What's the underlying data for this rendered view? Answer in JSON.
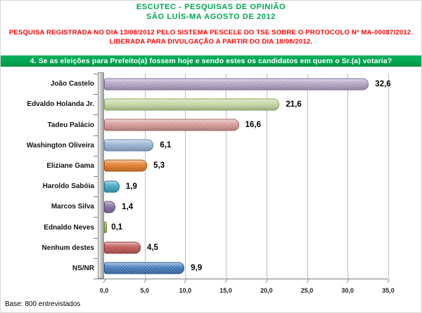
{
  "header": {
    "line1": "ESCUTEC - PESQUISAS DE OPINIÃO",
    "line2": "SÃO LUÍS-MA AGOSTO DE 2012",
    "reg_line1": "PESQUISA REGISTRADA NO DIA 13/08/2012 PELO SISTEMA PESCELE DO TSE SOBRE O PROTOCOLO Nº MA-00087/2012.",
    "reg_line2": "LIBERADA PARA DIVULGAÇÃO A PARTIR DO DIA 18/08/2012.",
    "title_color": "#00A651",
    "registration_color": "#FF0000"
  },
  "question_banner": {
    "text": "4. Se as eleições para Prefeito(a) fossem hoje e sendo estes os candidatos em quem o Sr.(a) votaria?",
    "bg_color": "#00A651",
    "text_color": "#FFFFFF"
  },
  "chart_data": {
    "type": "bar",
    "orientation": "horizontal",
    "title": "",
    "xlabel": "",
    "ylabel": "",
    "xlim": [
      0,
      35
    ],
    "x_ticks": [
      "0,0",
      "5,0",
      "10,0",
      "15,0",
      "20,0",
      "25,0",
      "30,0",
      "35,0"
    ],
    "x_tick_values": [
      0,
      5,
      10,
      15,
      20,
      25,
      30,
      35
    ],
    "grid": true,
    "legend": false,
    "categories": [
      "João Castelo",
      "Edvaldo Holanda Jr.",
      "Tadeu Palácio",
      "Washington Oliveira",
      "Eliziane Gama",
      "Haroldo Sabóia",
      "Marcos Silva",
      "Ednaldo Neves",
      "Nenhum destes",
      "NS/NR"
    ],
    "values": [
      32.6,
      21.6,
      16.6,
      6.1,
      5.3,
      1.9,
      1.4,
      0.1,
      4.5,
      9.9
    ],
    "value_labels": [
      "32,6",
      "21,6",
      "16,6",
      "6,1",
      "5,3",
      "1,9",
      "1,4",
      "0,1",
      "4,5",
      "9,9"
    ],
    "bar_colors": [
      "#b3a2c7",
      "#c6d9a0",
      "#d99694",
      "#95b3d7",
      "#e8761b",
      "#35a5c4",
      "#8064a2",
      "#9bbb59",
      "#c0504d",
      "#3a76bd"
    ],
    "bar_border_colors": [
      "#7e6a9d",
      "#89a254",
      "#a86462",
      "#5f82ad",
      "#a9560b",
      "#1f7491",
      "#59456f",
      "#6e8b34",
      "#8c3836",
      "#265a94"
    ]
  },
  "footer": {
    "base_text": "Base: 800 entrevistados"
  }
}
